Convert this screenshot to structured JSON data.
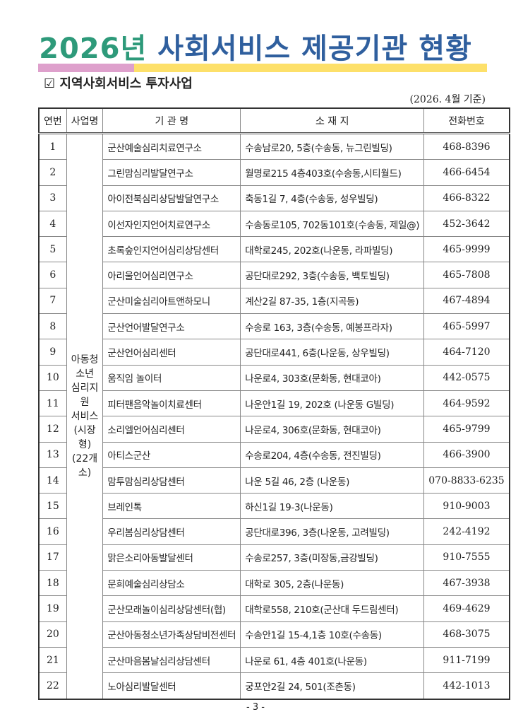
{
  "title": {
    "year": "2026년",
    "rest": " 사회서비스 제공기관 현황"
  },
  "colors": {
    "title_green": "#2e9a7a",
    "title_blue": "#2f5f9e",
    "bar_pink": "#dea0cc",
    "bar_yellow": "#fde06a"
  },
  "section": {
    "icon": "checkbox-icon",
    "label": "☑ 지역사회서비스 투자사업"
  },
  "basis": "(2026. 4월 기준)",
  "table": {
    "headers": [
      "연번",
      "사업명",
      "기 관 명",
      "소 재 지",
      "전화번호"
    ],
    "category": "아동청소년\n심리지원\n서비스\n(시장형)\n(22개소)",
    "rows": [
      {
        "no": "1",
        "name": "군산예술심리치료연구소",
        "addr": "수송남로20, 5층(수송동, 뉴그린빌딩)",
        "tel": "468-8396"
      },
      {
        "no": "2",
        "name": "그린맘심리발달연구소",
        "addr": "월명로215 4층403호(수송동,시티월드)",
        "tel": "466-6454"
      },
      {
        "no": "3",
        "name": "아이전북심리상담발달연구소",
        "addr": "축동1길 7, 4층(수송동, 성우빌딩)",
        "tel": "466-8322"
      },
      {
        "no": "4",
        "name": "이선자인지언어치료연구소",
        "addr": "수송동로105, 702동101호(수송동, 제일@)",
        "tel": "452-3642"
      },
      {
        "no": "5",
        "name": "초록숲인지언어심리상담센터",
        "addr": "대학로245, 202호(나운동, 라파빌딩)",
        "tel": "465-9999"
      },
      {
        "no": "6",
        "name": "아리울언어심리연구소",
        "addr": "공단대로292, 3층(수송동, 백토빌딩)",
        "tel": "465-7808"
      },
      {
        "no": "7",
        "name": "군산미술심리아트앤하모니",
        "addr": "계산2길 87-35, 1층(지곡동)",
        "tel": "467-4894"
      },
      {
        "no": "8",
        "name": "군산언어발달연구소",
        "addr": "수송로 163, 3층(수송동, 예봉프라자)",
        "tel": "465-5997"
      },
      {
        "no": "9",
        "name": "군산언어심리센터",
        "addr": "공단대로441, 6층(나운동, 상우빌딩)",
        "tel": "464-7120"
      },
      {
        "no": "10",
        "name": "움직임 놀이터",
        "addr": "나운로4, 303호(문화동, 현대코아)",
        "tel": "442-0575"
      },
      {
        "no": "11",
        "name": "피터팬음악놀이치료센터",
        "addr": "나운안1길 19, 202호 (나운동 G빌딩)",
        "tel": "464-9592"
      },
      {
        "no": "12",
        "name": "소리엘언어심리센터",
        "addr": "나운로4, 306호(문화동, 현대코아)",
        "tel": "465-9799"
      },
      {
        "no": "13",
        "name": "아티스군산",
        "addr": "수송로204, 4층(수송동, 전진빌딩)",
        "tel": "466-3900"
      },
      {
        "no": "14",
        "name": "맘투맘심리상담센터",
        "addr": "나운 5길 46, 2층 (나운동)",
        "tel": "070-8833-6235"
      },
      {
        "no": "15",
        "name": "브레인톡",
        "addr": "하신1길 19-3(나운동)",
        "tel": "910-9003"
      },
      {
        "no": "16",
        "name": "우리봄심리상담센터",
        "addr": "공단대로396, 3층(나운동, 고려빌딩)",
        "tel": "242-4192"
      },
      {
        "no": "17",
        "name": "맑은소리아동발달센터",
        "addr": "수송로257, 3층(미장동,금강빌딩)",
        "tel": "910-7555"
      },
      {
        "no": "18",
        "name": "문희예술심리상담소",
        "addr": "대학로 305, 2층(나운동)",
        "tel": "467-3938"
      },
      {
        "no": "19",
        "name": "군산모래놀이심리상담센터(협)",
        "addr": "대학로558, 210호(군산대 두드림센터)",
        "tel": "469-4629"
      },
      {
        "no": "20",
        "name": "군산아동청소년가족상담비전센터",
        "addr": "수송안1길 15-4,1층 10호(수송동)",
        "tel": "468-3075"
      },
      {
        "no": "21",
        "name": "군산마음봄날심리상담센터",
        "addr": "나운로 61, 4층 401호(나운동)",
        "tel": "911-7199"
      },
      {
        "no": "22",
        "name": "노아심리발달센터",
        "addr": "궁포안2길 24, 501(조촌동)",
        "tel": "442-1013"
      }
    ]
  },
  "page_number": "- 3 -"
}
